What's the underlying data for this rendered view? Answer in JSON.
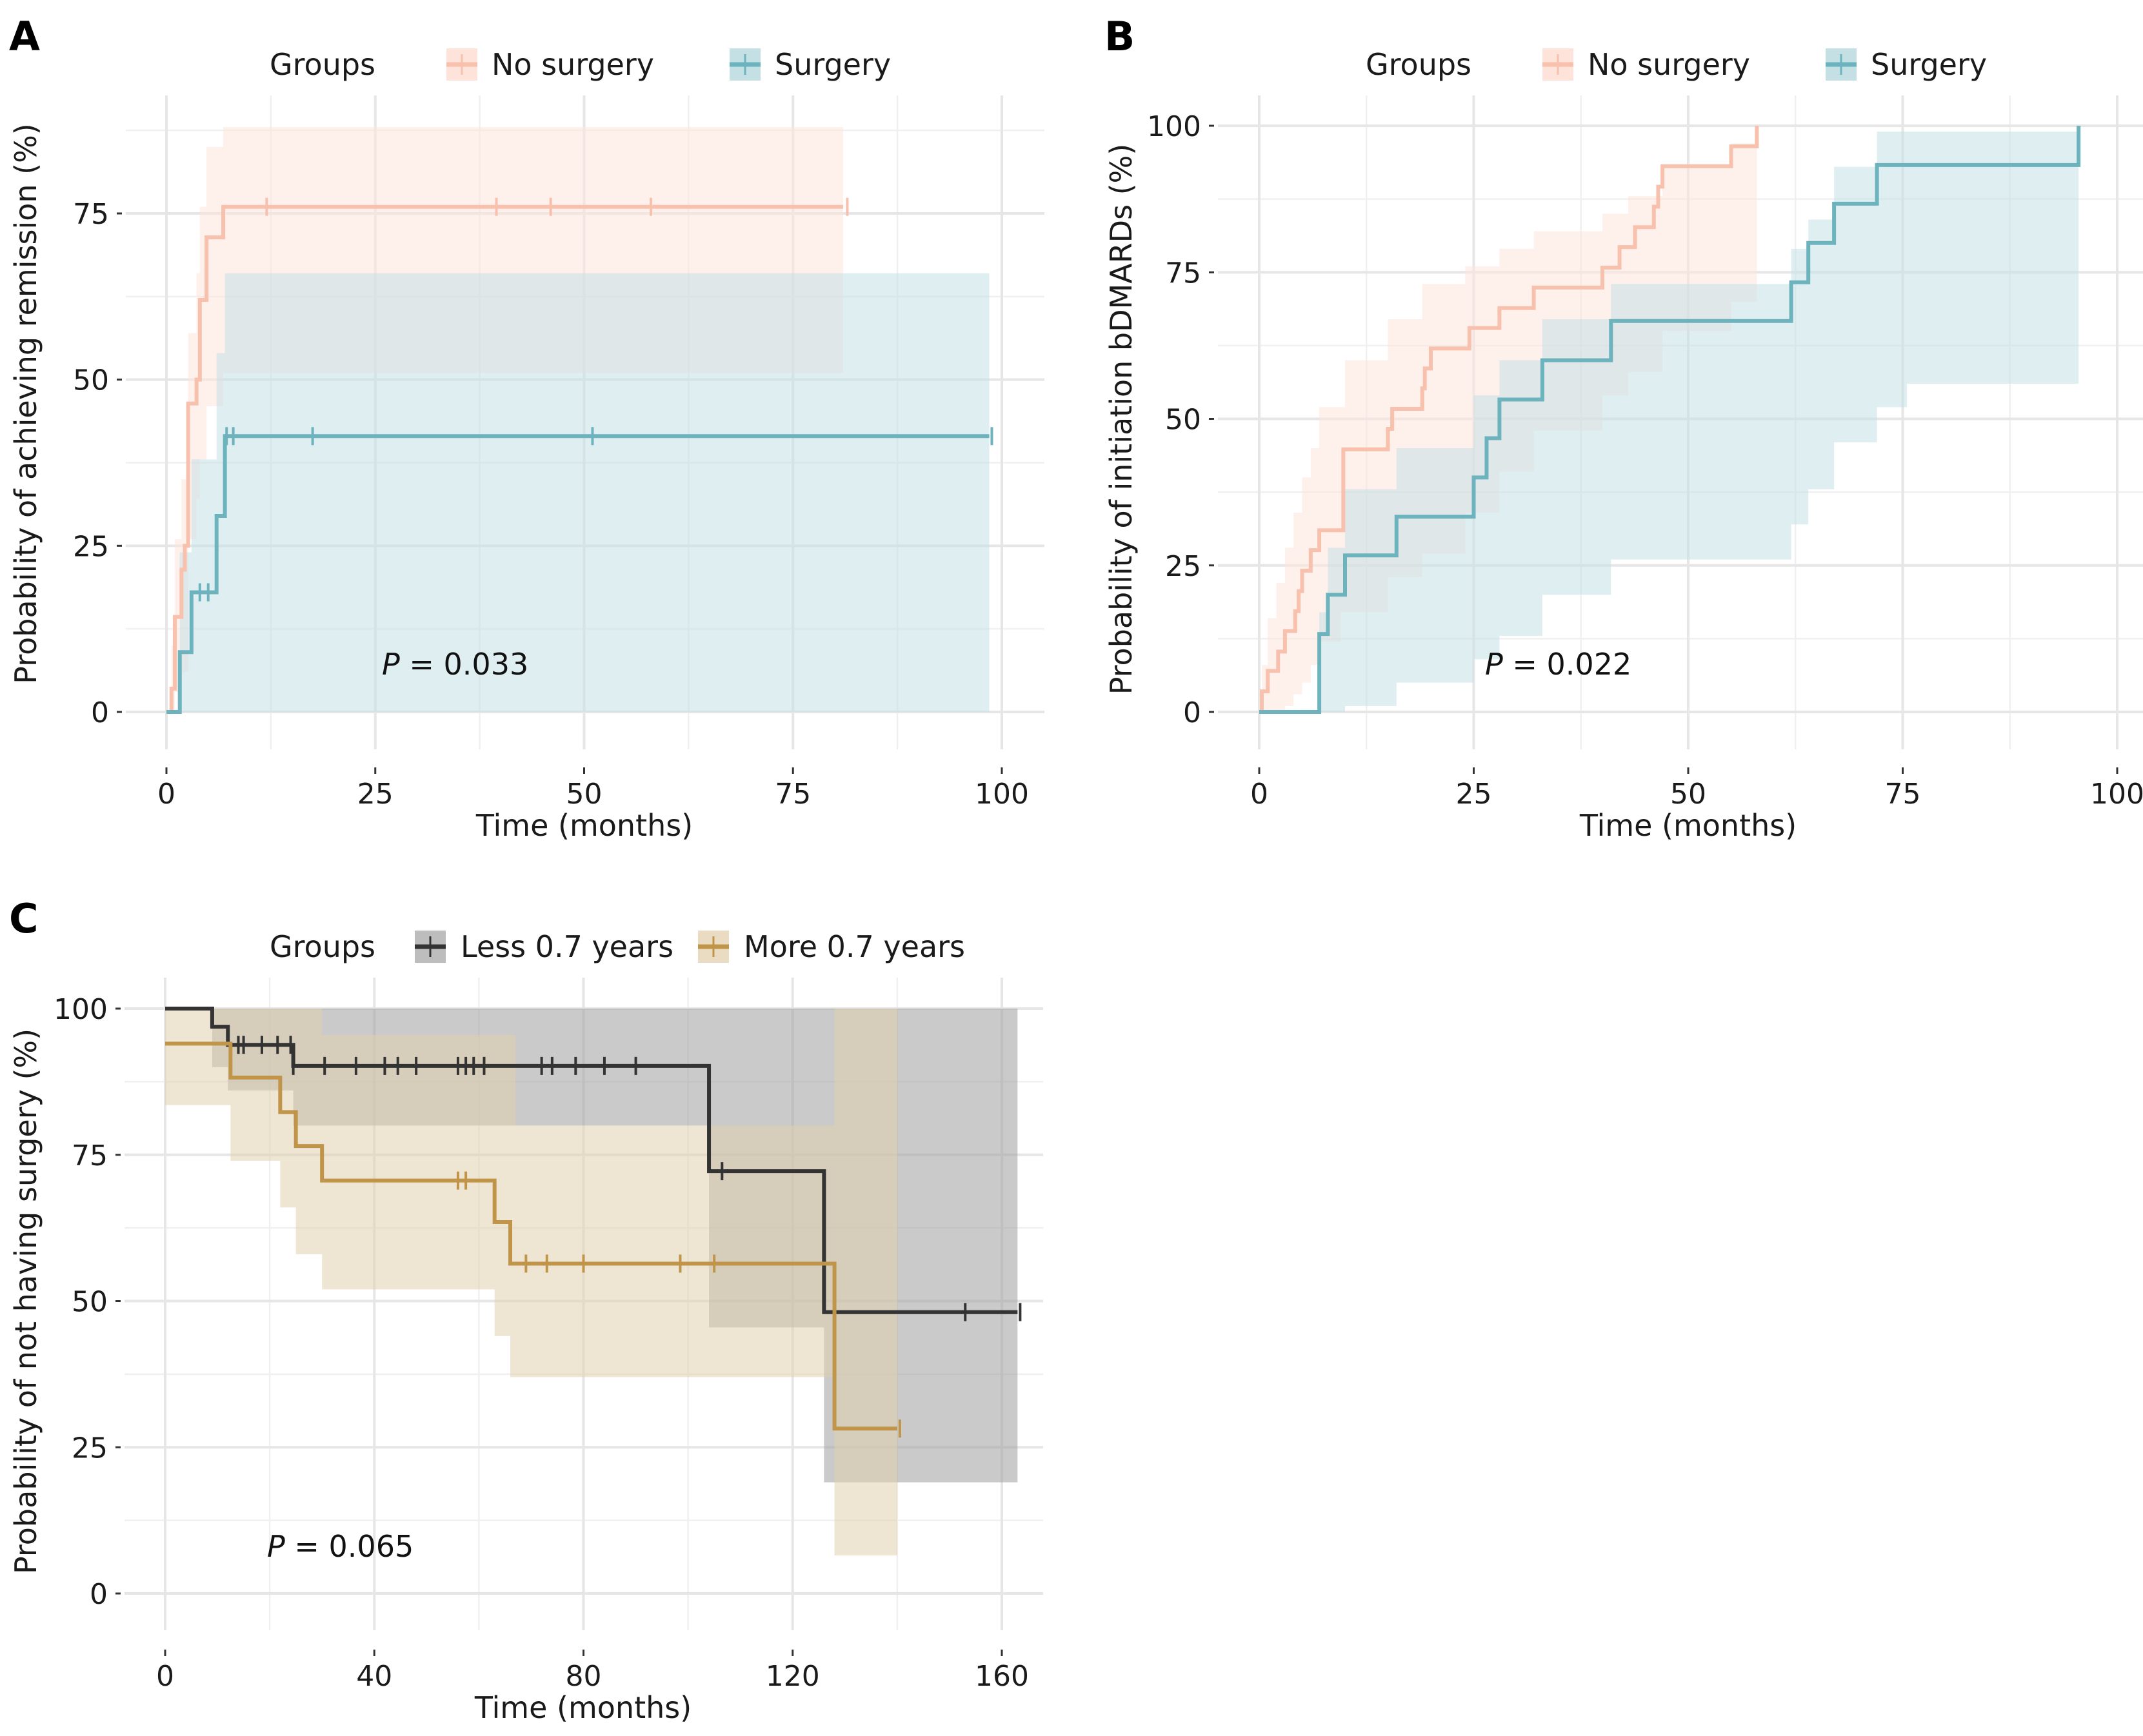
{
  "figure": {
    "panels": [
      "A",
      "B",
      "C"
    ]
  },
  "chart_data": [
    {
      "panel": "A",
      "type": "line",
      "subtype": "kaplan-meier-cumulative-incidence",
      "title": "",
      "xlabel": "Time (months)",
      "ylabel": "Probability of achieving remission (%)",
      "xlim": [
        0,
        100
      ],
      "ylim": [
        0,
        90
      ],
      "xticks": [
        0,
        25,
        50,
        75,
        100
      ],
      "yticks": [
        0,
        25,
        50,
        75
      ],
      "grid": true,
      "legend": {
        "title": "Groups",
        "position": "top",
        "entries": [
          "No surgery",
          "Surgery"
        ]
      },
      "annotation": {
        "label": "P",
        "text": " = 0.033",
        "x": 26,
        "y": 7
      },
      "series": [
        {
          "name": "No surgery",
          "color": "#F8C1AD",
          "fill": "#FDE3DA",
          "steps": [
            [
              0,
              0
            ],
            [
              0.6,
              3.5
            ],
            [
              1,
              14.3
            ],
            [
              1.8,
              21.4
            ],
            [
              2.2,
              25
            ],
            [
              2.6,
              46.4
            ],
            [
              3.6,
              50
            ],
            [
              4,
              62
            ],
            [
              4.8,
              71.4
            ],
            [
              6.8,
              76
            ],
            [
              81,
              76
            ]
          ],
          "ci_upper": [
            [
              0,
              0
            ],
            [
              0.6,
              10
            ],
            [
              1,
              26
            ],
            [
              1.8,
              35
            ],
            [
              2.6,
              57
            ],
            [
              3.6,
              66
            ],
            [
              4,
              76
            ],
            [
              4.8,
              85
            ],
            [
              6.8,
              88
            ],
            [
              81,
              88
            ]
          ],
          "ci_lower": [
            [
              0,
              0
            ],
            [
              0.6,
              0
            ],
            [
              1,
              3
            ],
            [
              1.8,
              6
            ],
            [
              2.6,
              26
            ],
            [
              3.6,
              32
            ],
            [
              4,
              38
            ],
            [
              4.8,
              46
            ],
            [
              6.8,
              51
            ],
            [
              81,
              51
            ]
          ],
          "censor": [
            12,
            39.5,
            46,
            58,
            81.5
          ]
        },
        {
          "name": "Surgery",
          "color": "#6DB3BE",
          "fill": "#C5E0E5",
          "steps": [
            [
              0,
              0
            ],
            [
              1.6,
              9
            ],
            [
              3,
              18
            ],
            [
              5,
              18
            ],
            [
              6,
              29.5
            ],
            [
              7,
              41.5
            ],
            [
              98.5,
              41.5
            ]
          ],
          "ci_upper": [
            [
              0,
              0
            ],
            [
              1.6,
              24
            ],
            [
              3,
              38
            ],
            [
              6,
              54
            ],
            [
              7,
              66
            ],
            [
              98.5,
              66
            ]
          ],
          "ci_lower": [
            [
              0,
              0
            ],
            [
              1.6,
              0
            ],
            [
              3,
              0
            ],
            [
              6,
              0
            ],
            [
              7,
              0
            ],
            [
              98.5,
              0
            ]
          ],
          "censor": [
            4,
            5,
            7.2,
            8,
            17.5,
            51,
            98.8
          ]
        }
      ]
    },
    {
      "panel": "B",
      "type": "line",
      "subtype": "kaplan-meier-cumulative-incidence",
      "title": "",
      "xlabel": "Time (months)",
      "ylabel": "Probability of initiation bDMARDs (%)",
      "xlim": [
        0,
        100
      ],
      "ylim": [
        0,
        100
      ],
      "xticks": [
        0,
        25,
        50,
        75,
        100
      ],
      "yticks": [
        0,
        25,
        50,
        75,
        100
      ],
      "grid": true,
      "legend": {
        "title": "Groups",
        "position": "top",
        "entries": [
          "No surgery",
          "Surgery"
        ]
      },
      "annotation": {
        "label": "P",
        "text": " = 0.022",
        "x": 26,
        "y": 7
      },
      "series": [
        {
          "name": "No surgery",
          "color": "#F8C1AD",
          "fill": "#FDE3DA",
          "steps": [
            [
              0,
              0
            ],
            [
              0.3,
              3.5
            ],
            [
              1,
              7
            ],
            [
              2.2,
              10.3
            ],
            [
              3,
              13.8
            ],
            [
              4.2,
              17.2
            ],
            [
              4.6,
              20.6
            ],
            [
              5,
              24.1
            ],
            [
              6,
              27.6
            ],
            [
              7,
              31
            ],
            [
              9.8,
              44.8
            ],
            [
              15,
              48.3
            ],
            [
              15.5,
              51.7
            ],
            [
              19,
              55.2
            ],
            [
              19.3,
              58.6
            ],
            [
              20,
              62
            ],
            [
              24.5,
              65.5
            ],
            [
              28,
              68.9
            ],
            [
              32,
              72.4
            ],
            [
              40,
              75.8
            ],
            [
              42,
              79.3
            ],
            [
              43.8,
              82.7
            ],
            [
              46,
              86.2
            ],
            [
              46.5,
              89.6
            ],
            [
              47,
              93.1
            ],
            [
              55,
              96.5
            ],
            [
              58,
              100
            ]
          ],
          "ci_upper": [
            [
              0,
              0
            ],
            [
              0.3,
              8
            ],
            [
              1,
              16
            ],
            [
              2,
              22
            ],
            [
              3,
              28
            ],
            [
              4,
              34
            ],
            [
              5,
              40
            ],
            [
              6,
              45
            ],
            [
              7,
              52
            ],
            [
              10,
              60
            ],
            [
              15,
              67
            ],
            [
              19,
              73
            ],
            [
              24,
              76
            ],
            [
              28,
              79
            ],
            [
              32,
              82
            ],
            [
              40,
              85
            ],
            [
              43,
              88
            ],
            [
              47,
              93
            ],
            [
              55,
              97
            ],
            [
              58,
              100
            ]
          ],
          "ci_lower": [
            [
              0,
              0
            ],
            [
              3,
              1
            ],
            [
              4,
              3
            ],
            [
              5,
              5
            ],
            [
              6,
              8
            ],
            [
              7,
              12
            ],
            [
              9.5,
              17
            ],
            [
              15,
              23
            ],
            [
              19,
              27
            ],
            [
              24,
              34
            ],
            [
              28,
              41
            ],
            [
              32,
              48
            ],
            [
              40,
              54
            ],
            [
              43,
              58
            ],
            [
              47,
              65
            ],
            [
              55,
              70
            ],
            [
              58,
              70
            ]
          ],
          "censor": []
        },
        {
          "name": "Surgery",
          "color": "#6DB3BE",
          "fill": "#C5E0E5",
          "steps": [
            [
              0,
              0
            ],
            [
              7,
              13.3
            ],
            [
              8,
              20
            ],
            [
              10,
              26.7
            ],
            [
              16,
              33.3
            ],
            [
              25,
              40
            ],
            [
              26.5,
              46.7
            ],
            [
              28,
              53.3
            ],
            [
              33,
              60
            ],
            [
              41,
              66.7
            ],
            [
              62,
              73.3
            ],
            [
              64,
              80
            ],
            [
              67,
              86.7
            ],
            [
              72,
              93.3
            ],
            [
              95.5,
              100
            ]
          ],
          "ci_upper": [
            [
              0,
              0
            ],
            [
              7,
              17
            ],
            [
              8,
              28
            ],
            [
              10,
              38
            ],
            [
              16,
              45
            ],
            [
              25,
              54
            ],
            [
              28,
              60
            ],
            [
              33,
              67
            ],
            [
              41,
              73
            ],
            [
              62,
              79
            ],
            [
              64,
              84
            ],
            [
              67,
              93
            ],
            [
              72,
              99
            ],
            [
              95.5,
              99
            ]
          ],
          "ci_lower": [
            [
              0,
              0
            ],
            [
              10,
              1
            ],
            [
              16,
              5
            ],
            [
              25,
              9
            ],
            [
              28,
              13
            ],
            [
              33,
              20
            ],
            [
              41,
              26
            ],
            [
              62,
              32
            ],
            [
              64,
              38
            ],
            [
              67,
              46
            ],
            [
              72,
              52
            ],
            [
              75.5,
              56
            ],
            [
              95.5,
              56
            ]
          ],
          "censor": []
        }
      ]
    },
    {
      "panel": "C",
      "type": "line",
      "subtype": "kaplan-meier-survival",
      "title": "",
      "xlabel": "Time (months)",
      "ylabel": "Probability of not having surgery (%)",
      "xlim": [
        0,
        160
      ],
      "ylim": [
        0,
        100
      ],
      "xticks": [
        0,
        40,
        80,
        120,
        160
      ],
      "yticks": [
        0,
        25,
        50,
        75,
        100
      ],
      "grid": true,
      "legend": {
        "title": "Groups",
        "position": "top",
        "entries": [
          "Less 0.7 years",
          "More 0.7 years"
        ]
      },
      "annotation": {
        "label": "P",
        "text": " = 0.065",
        "x": 20,
        "y": 8
      },
      "series": [
        {
          "name": "Less 0.7 years",
          "color": "#333333",
          "fill": "#9E9E9E",
          "steps": [
            [
              0,
              100
            ],
            [
              9,
              96.9
            ],
            [
              12,
              93.8
            ],
            [
              24.5,
              90.2
            ],
            [
              104,
              72.2
            ],
            [
              126,
              48.1
            ],
            [
              163,
              48.1
            ]
          ],
          "ci_upper": [
            [
              0,
              100
            ],
            [
              163,
              100
            ]
          ],
          "ci_lower": [
            [
              0,
              100
            ],
            [
              9,
              90
            ],
            [
              12,
              86
            ],
            [
              24.5,
              80
            ],
            [
              104,
              45.5
            ],
            [
              126,
              19
            ],
            [
              163,
              19
            ]
          ],
          "censor": [
            14,
            15,
            18.5,
            21.5,
            24,
            24.5,
            30.5,
            36.5,
            42,
            44.5,
            48,
            56,
            57.5,
            59,
            61,
            72,
            74,
            78.5,
            84,
            90,
            106.5,
            153,
            163.5
          ]
        },
        {
          "name": "More 0.7 years",
          "color": "#C0954A",
          "fill": "#E2CFAE",
          "steps": [
            [
              0,
              94
            ],
            [
              12.5,
              88.2
            ],
            [
              22,
              82.3
            ],
            [
              25,
              76.5
            ],
            [
              30,
              70.6
            ],
            [
              63,
              63.5
            ],
            [
              66,
              56.4
            ],
            [
              128,
              28.2
            ],
            [
              140,
              28.2
            ]
          ],
          "ci_upper": [
            [
              0,
              100
            ],
            [
              30,
              95.5
            ],
            [
              67,
              80
            ],
            [
              128,
              100
            ],
            [
              140,
              100
            ]
          ],
          "ci_lower": [
            [
              0,
              83.5
            ],
            [
              12.5,
              74
            ],
            [
              22,
              66
            ],
            [
              25,
              58
            ],
            [
              30,
              52
            ],
            [
              63,
              44
            ],
            [
              66,
              37
            ],
            [
              128,
              6.5
            ],
            [
              140,
              6.5
            ]
          ],
          "censor": [
            56,
            57.5,
            69,
            73,
            80,
            98.5,
            105,
            140.5
          ]
        }
      ]
    }
  ]
}
